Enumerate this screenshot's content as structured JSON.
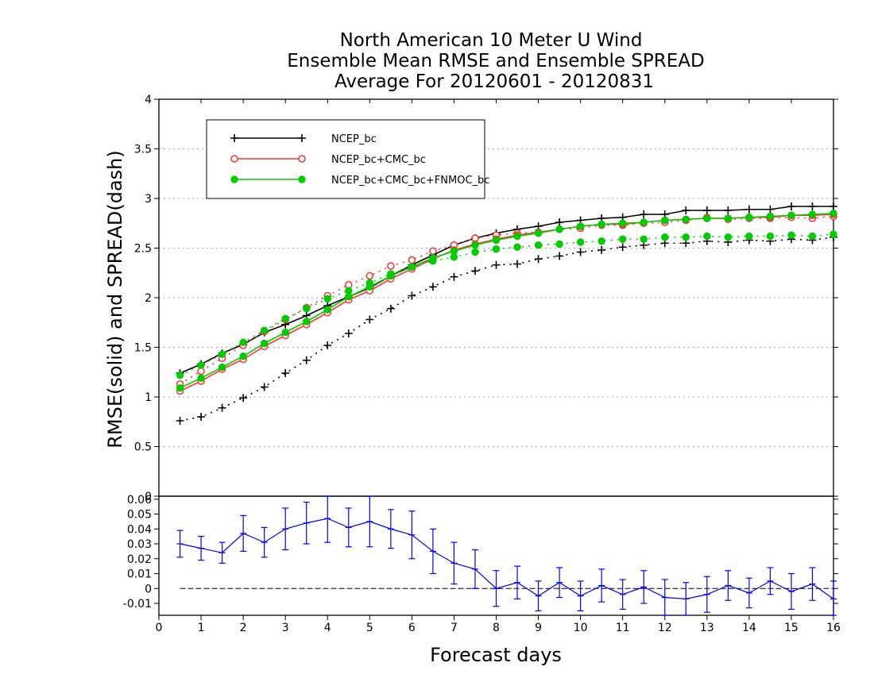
{
  "chart_data": [
    {
      "type": "line",
      "title_lines": [
        "North American 10 Meter U Wind",
        "Ensemble Mean RMSE and Ensemble SPREAD",
        "Average For 20120601 - 20120831"
      ],
      "ylabel": "RMSE(solid) and SPREAD(dash)",
      "xlim": [
        0,
        16
      ],
      "ylim": [
        0,
        4
      ],
      "yticks": [
        0,
        0.5,
        1,
        1.5,
        2,
        2.5,
        3,
        3.5,
        4
      ],
      "ytick_labels": [
        "0",
        "0.5",
        "1",
        "1.5",
        "2",
        "2.5",
        "3",
        "3.5",
        "4"
      ],
      "grid": true,
      "legend_position": "top-left",
      "x": [
        0.5,
        1,
        1.5,
        2,
        2.5,
        3,
        3.5,
        4,
        4.5,
        5,
        5.5,
        6,
        6.5,
        7,
        7.5,
        8,
        8.5,
        9,
        9.5,
        10,
        10.5,
        11,
        11.5,
        12,
        12.5,
        13,
        13.5,
        14,
        14.5,
        15,
        15.5,
        16
      ],
      "series": [
        {
          "name": "NCEP_bc",
          "color": "#000000",
          "marker": "plus",
          "rmse": [
            1.24,
            1.33,
            1.44,
            1.53,
            1.65,
            1.73,
            1.82,
            1.92,
            2.01,
            2.1,
            2.22,
            2.33,
            2.43,
            2.53,
            2.6,
            2.65,
            2.69,
            2.72,
            2.76,
            2.78,
            2.8,
            2.81,
            2.84,
            2.84,
            2.88,
            2.88,
            2.88,
            2.89,
            2.89,
            2.92,
            2.92,
            2.92
          ],
          "spread": [
            0.76,
            0.8,
            0.89,
            0.99,
            1.1,
            1.24,
            1.37,
            1.52,
            1.64,
            1.78,
            1.89,
            2.02,
            2.11,
            2.21,
            2.27,
            2.33,
            2.34,
            2.39,
            2.42,
            2.46,
            2.48,
            2.51,
            2.53,
            2.55,
            2.55,
            2.57,
            2.56,
            2.58,
            2.57,
            2.59,
            2.58,
            2.61
          ]
        },
        {
          "name": "NCEP_bc+CMC_bc",
          "color": "#ff3333",
          "marker": "open-circle",
          "rmse": [
            1.06,
            1.16,
            1.28,
            1.38,
            1.51,
            1.62,
            1.73,
            1.85,
            1.98,
            2.07,
            2.19,
            2.29,
            2.39,
            2.48,
            2.54,
            2.59,
            2.63,
            2.66,
            2.69,
            2.72,
            2.74,
            2.74,
            2.76,
            2.78,
            2.79,
            2.8,
            2.8,
            2.81,
            2.81,
            2.83,
            2.83,
            2.84
          ],
          "spread": [
            1.13,
            1.26,
            1.39,
            1.52,
            1.66,
            1.78,
            1.9,
            2.02,
            2.13,
            2.22,
            2.32,
            2.38,
            2.47,
            2.53,
            2.6,
            2.63,
            2.65,
            2.66,
            2.69,
            2.7,
            2.73,
            2.73,
            2.75,
            2.76,
            2.78,
            2.81,
            2.79,
            2.8,
            2.8,
            2.81,
            2.8,
            2.82
          ]
        },
        {
          "name": "NCEP_bc+CMC_bc+FNMOC_bc",
          "color": "#00cc00",
          "marker": "filled-circle",
          "rmse": [
            1.09,
            1.19,
            1.3,
            1.41,
            1.54,
            1.65,
            1.76,
            1.88,
            2.01,
            2.11,
            2.22,
            2.31,
            2.4,
            2.47,
            2.53,
            2.58,
            2.62,
            2.65,
            2.69,
            2.72,
            2.74,
            2.75,
            2.76,
            2.78,
            2.79,
            2.8,
            2.8,
            2.81,
            2.82,
            2.83,
            2.84,
            2.85
          ],
          "spread": [
            1.22,
            1.32,
            1.43,
            1.55,
            1.67,
            1.79,
            1.89,
            1.99,
            2.07,
            2.15,
            2.24,
            2.31,
            2.37,
            2.41,
            2.46,
            2.49,
            2.51,
            2.53,
            2.54,
            2.56,
            2.57,
            2.59,
            2.59,
            2.61,
            2.61,
            2.62,
            2.61,
            2.62,
            2.62,
            2.63,
            2.62,
            2.64
          ]
        }
      ]
    },
    {
      "type": "line",
      "subtype": "errorbar",
      "xlabel": "Forecast days",
      "xlim": [
        0,
        16
      ],
      "xticks": [
        0,
        1,
        2,
        3,
        4,
        5,
        6,
        7,
        8,
        9,
        10,
        11,
        12,
        13,
        14,
        15,
        16
      ],
      "xtick_labels": [
        "0",
        "1",
        "2",
        "3",
        "4",
        "5",
        "6",
        "7",
        "8",
        "9",
        "10",
        "11",
        "12",
        "13",
        "14",
        "15",
        "16"
      ],
      "ylim": [
        -0.018,
        0.062
      ],
      "yticks": [
        -0.01,
        0,
        0.01,
        0.02,
        0.03,
        0.04,
        0.05,
        0.06
      ],
      "ytick_labels": [
        "-0.01",
        "0",
        "0.01",
        "0.02",
        "0.03",
        "0.04",
        "0.05",
        "0.06"
      ],
      "reference_line": 0,
      "color": "#0000ff",
      "x": [
        0.5,
        1,
        1.5,
        2,
        2.5,
        3,
        3.5,
        4,
        4.5,
        5,
        5.5,
        6,
        6.5,
        7,
        7.5,
        8,
        8.5,
        9,
        9.5,
        10,
        10.5,
        11,
        11.5,
        12,
        12.5,
        13,
        13.5,
        14,
        14.5,
        15,
        15.5,
        16
      ],
      "values": [
        0.03,
        0.027,
        0.024,
        0.037,
        0.031,
        0.04,
        0.044,
        0.047,
        0.041,
        0.045,
        0.04,
        0.036,
        0.025,
        0.017,
        0.013,
        0.0,
        0.004,
        -0.005,
        0.004,
        -0.005,
        0.002,
        -0.004,
        0.001,
        -0.006,
        -0.007,
        -0.004,
        0.002,
        -0.003,
        0.005,
        -0.002,
        0.003,
        -0.007
      ],
      "errors": [
        0.009,
        0.008,
        0.007,
        0.012,
        0.01,
        0.014,
        0.014,
        0.016,
        0.013,
        0.017,
        0.013,
        0.016,
        0.015,
        0.014,
        0.013,
        0.012,
        0.011,
        0.01,
        0.01,
        0.01,
        0.011,
        0.01,
        0.011,
        0.012,
        0.011,
        0.012,
        0.01,
        0.01,
        0.009,
        0.012,
        0.011,
        0.012
      ]
    }
  ]
}
